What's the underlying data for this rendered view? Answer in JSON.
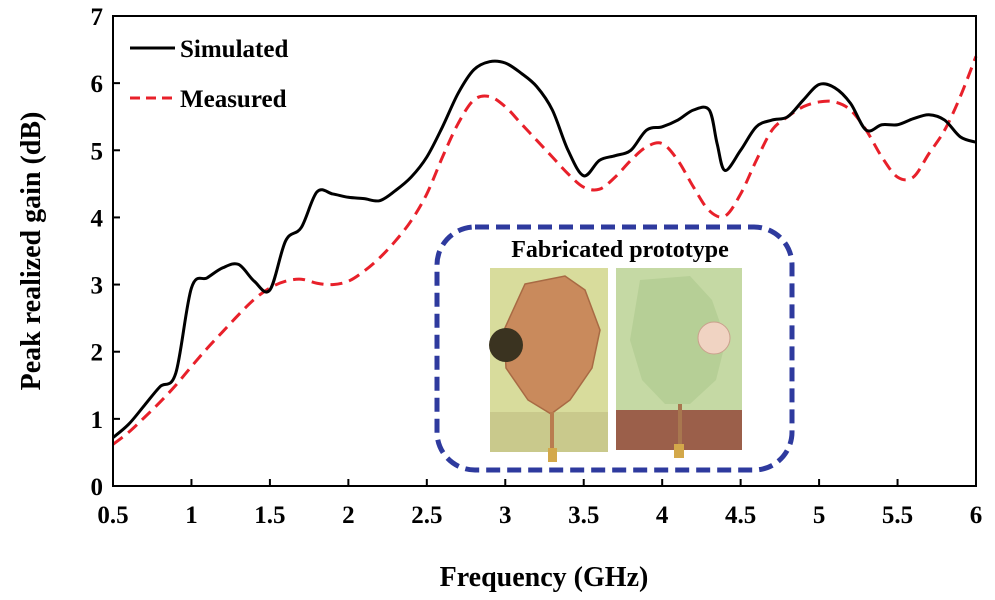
{
  "chart_data": {
    "type": "line",
    "title": "",
    "xlabel": "Frequency (GHz)",
    "ylabel": "Peak realized gain (dB)",
    "xlim": [
      0.5,
      6
    ],
    "ylim": [
      0,
      7
    ],
    "xticks": [
      0.5,
      1,
      1.5,
      2,
      2.5,
      3,
      3.5,
      4,
      4.5,
      5,
      5.5,
      6
    ],
    "xtick_labels": [
      "0.5",
      "1",
      "1.5",
      "2",
      "2.5",
      "3",
      "3.5",
      "4",
      "4.5",
      "5",
      "5.5",
      "6"
    ],
    "yticks": [
      0,
      1,
      2,
      3,
      4,
      5,
      6,
      7
    ],
    "ytick_labels": [
      "0",
      "1",
      "2",
      "3",
      "4",
      "5",
      "6",
      "7"
    ],
    "legend_position": "top-left",
    "series": [
      {
        "name": "Simulated",
        "color": "#000000",
        "style": "solid",
        "x": [
          0.5,
          0.6,
          0.7,
          0.8,
          0.9,
          1.0,
          1.1,
          1.2,
          1.3,
          1.4,
          1.5,
          1.6,
          1.7,
          1.8,
          1.9,
          2.0,
          2.1,
          2.2,
          2.3,
          2.4,
          2.5,
          2.6,
          2.7,
          2.8,
          2.9,
          3.0,
          3.1,
          3.2,
          3.3,
          3.4,
          3.5,
          3.6,
          3.7,
          3.8,
          3.9,
          4.0,
          4.1,
          4.2,
          4.3,
          4.35,
          4.4,
          4.5,
          4.6,
          4.7,
          4.8,
          4.9,
          5.0,
          5.1,
          5.2,
          5.3,
          5.4,
          5.5,
          5.6,
          5.7,
          5.8,
          5.9,
          6.0
        ],
        "y": [
          0.72,
          0.92,
          1.2,
          1.48,
          1.68,
          2.95,
          3.1,
          3.25,
          3.3,
          3.05,
          2.92,
          3.65,
          3.85,
          4.38,
          4.35,
          4.3,
          4.28,
          4.25,
          4.4,
          4.6,
          4.9,
          5.35,
          5.85,
          6.2,
          6.32,
          6.3,
          6.15,
          5.95,
          5.6,
          5.0,
          4.62,
          4.85,
          4.92,
          5.0,
          5.3,
          5.35,
          5.45,
          5.6,
          5.6,
          5.1,
          4.7,
          5.0,
          5.35,
          5.45,
          5.5,
          5.75,
          5.98,
          5.93,
          5.7,
          5.3,
          5.38,
          5.38,
          5.47,
          5.53,
          5.45,
          5.2,
          5.12
        ]
      },
      {
        "name": "Measured",
        "color": "#e8202a",
        "style": "dashed",
        "x": [
          0.5,
          0.6,
          0.7,
          0.8,
          0.9,
          1.0,
          1.1,
          1.2,
          1.3,
          1.4,
          1.5,
          1.6,
          1.7,
          1.8,
          1.9,
          2.0,
          2.1,
          2.2,
          2.3,
          2.4,
          2.5,
          2.6,
          2.7,
          2.8,
          2.9,
          3.0,
          3.1,
          3.2,
          3.3,
          3.4,
          3.5,
          3.6,
          3.7,
          3.8,
          3.9,
          4.0,
          4.1,
          4.2,
          4.3,
          4.4,
          4.5,
          4.6,
          4.7,
          4.8,
          4.9,
          5.0,
          5.1,
          5.2,
          5.3,
          5.4,
          5.5,
          5.6,
          5.7,
          5.8,
          5.9,
          6.0
        ],
        "y": [
          0.62,
          0.8,
          1.02,
          1.25,
          1.5,
          1.78,
          2.05,
          2.3,
          2.55,
          2.78,
          2.95,
          3.05,
          3.08,
          3.02,
          3.0,
          3.05,
          3.2,
          3.4,
          3.65,
          3.95,
          4.35,
          4.9,
          5.4,
          5.75,
          5.8,
          5.65,
          5.4,
          5.15,
          4.9,
          4.65,
          4.45,
          4.42,
          4.6,
          4.85,
          5.05,
          5.1,
          4.85,
          4.45,
          4.1,
          4.02,
          4.35,
          4.85,
          5.3,
          5.5,
          5.65,
          5.72,
          5.72,
          5.6,
          5.3,
          4.9,
          4.6,
          4.6,
          4.95,
          5.3,
          5.8,
          6.4
        ]
      }
    ],
    "annotations": {
      "inset_title": "Fabricated prototype",
      "inset_border_color": "#2e3a9e"
    }
  }
}
